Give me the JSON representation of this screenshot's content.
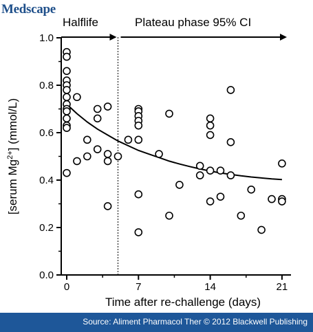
{
  "brand": "Medscape",
  "source": "Source: Aliment Pharmacol Ther © 2012 Blackwell Publishing",
  "chart_data": {
    "type": "scatter",
    "xlabel": "Time after re-challenge (days)",
    "ylabel_pre": "[serum Mg",
    "ylabel_sup": "2+",
    "ylabel_post": "] (mmol/L)",
    "xlim": [
      -1,
      23
    ],
    "ylim": [
      0,
      1.0
    ],
    "x_ticks": [
      0,
      7,
      14,
      21
    ],
    "y_ticks": [
      "0.0",
      "0.2",
      "0.4",
      "0.6",
      "0.8",
      "1.0"
    ],
    "phase_divider_x": 5,
    "phases": [
      {
        "label": "Halflife"
      },
      {
        "label": "Plateau phase 95% CI"
      }
    ],
    "fit_curve": {
      "x": [
        0,
        1,
        2,
        3,
        4,
        5,
        6,
        7,
        8,
        9,
        10,
        11,
        12,
        13,
        14,
        15,
        16,
        17,
        18,
        19,
        20,
        21
      ],
      "y": [
        0.72,
        0.68,
        0.645,
        0.615,
        0.59,
        0.565,
        0.545,
        0.525,
        0.51,
        0.495,
        0.48,
        0.468,
        0.457,
        0.447,
        0.438,
        0.43,
        0.424,
        0.418,
        0.413,
        0.409,
        0.405,
        0.402
      ]
    },
    "points": [
      {
        "x": 0,
        "y": 0.94
      },
      {
        "x": 0,
        "y": 0.92
      },
      {
        "x": 0,
        "y": 0.86
      },
      {
        "x": 0,
        "y": 0.82
      },
      {
        "x": 0,
        "y": 0.8
      },
      {
        "x": 0,
        "y": 0.78
      },
      {
        "x": 0,
        "y": 0.75
      },
      {
        "x": 0,
        "y": 0.72
      },
      {
        "x": 0,
        "y": 0.7
      },
      {
        "x": 0,
        "y": 0.69
      },
      {
        "x": 0,
        "y": 0.66
      },
      {
        "x": 0,
        "y": 0.63
      },
      {
        "x": 0,
        "y": 0.62
      },
      {
        "x": 0,
        "y": 0.43
      },
      {
        "x": 1,
        "y": 0.75
      },
      {
        "x": 1,
        "y": 0.48
      },
      {
        "x": 2,
        "y": 0.57
      },
      {
        "x": 2,
        "y": 0.5
      },
      {
        "x": 3,
        "y": 0.7
      },
      {
        "x": 3,
        "y": 0.66
      },
      {
        "x": 3,
        "y": 0.53
      },
      {
        "x": 4,
        "y": 0.71
      },
      {
        "x": 4,
        "y": 0.51
      },
      {
        "x": 4,
        "y": 0.48
      },
      {
        "x": 4,
        "y": 0.29
      },
      {
        "x": 5,
        "y": 0.5
      },
      {
        "x": 6,
        "y": 0.57
      },
      {
        "x": 7,
        "y": 0.7
      },
      {
        "x": 7,
        "y": 0.69
      },
      {
        "x": 7,
        "y": 0.67
      },
      {
        "x": 7,
        "y": 0.65
      },
      {
        "x": 7,
        "y": 0.63
      },
      {
        "x": 7,
        "y": 0.57
      },
      {
        "x": 7,
        "y": 0.34
      },
      {
        "x": 7,
        "y": 0.18
      },
      {
        "x": 9,
        "y": 0.51
      },
      {
        "x": 10,
        "y": 0.68
      },
      {
        "x": 10,
        "y": 0.25
      },
      {
        "x": 11,
        "y": 0.38
      },
      {
        "x": 13,
        "y": 0.46
      },
      {
        "x": 13,
        "y": 0.42
      },
      {
        "x": 14,
        "y": 0.66
      },
      {
        "x": 14,
        "y": 0.63
      },
      {
        "x": 14,
        "y": 0.59
      },
      {
        "x": 14,
        "y": 0.44
      },
      {
        "x": 14,
        "y": 0.31
      },
      {
        "x": 15,
        "y": 0.44
      },
      {
        "x": 15,
        "y": 0.33
      },
      {
        "x": 16,
        "y": 0.78
      },
      {
        "x": 16,
        "y": 0.56
      },
      {
        "x": 16,
        "y": 0.42
      },
      {
        "x": 17,
        "y": 0.25
      },
      {
        "x": 18,
        "y": 0.36
      },
      {
        "x": 19,
        "y": 0.19
      },
      {
        "x": 20,
        "y": 0.32
      },
      {
        "x": 21,
        "y": 0.47
      },
      {
        "x": 21,
        "y": 0.32
      },
      {
        "x": 21,
        "y": 0.31
      }
    ]
  }
}
